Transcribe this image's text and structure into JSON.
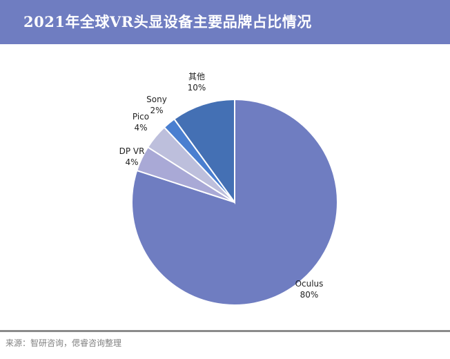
{
  "header": {
    "title": "2021年全球VR头显设备主要品牌占比情况"
  },
  "chart_data": {
    "type": "pie",
    "title": "",
    "start_angle_deg": 0,
    "direction": "clockwise",
    "slices": [
      {
        "label": "Oculus",
        "value": 80,
        "display": "80%",
        "color": "#6f7dc1"
      },
      {
        "label": "DP VR",
        "value": 4,
        "display": "4%",
        "color": "#a9a9d6"
      },
      {
        "label": "Pico",
        "value": 4,
        "display": "4%",
        "color": "#bdbfdc"
      },
      {
        "label": "Sony",
        "value": 2,
        "display": "2%",
        "color": "#4a7fd0"
      },
      {
        "label": "其他",
        "value": 10,
        "display": "10%",
        "color": "#4470b4"
      }
    ],
    "legend": "none",
    "data_labels": "outside"
  },
  "footer": {
    "source": "来源：智研咨询，偲睿咨询整理"
  }
}
